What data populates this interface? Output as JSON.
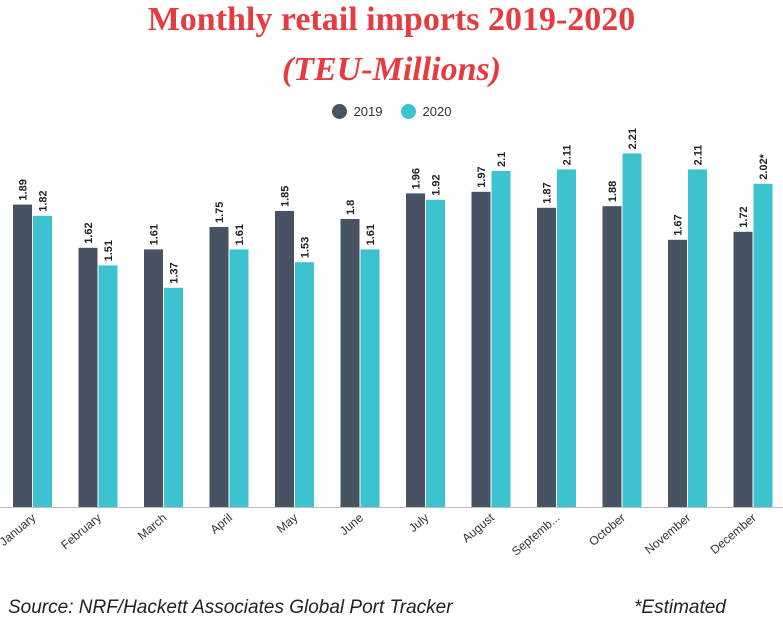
{
  "chart_data": {
    "type": "bar",
    "title": "Monthly retail imports 2019-2020",
    "subtitle": "(TEU-Millions)",
    "categories": [
      "January",
      "February",
      "March",
      "April",
      "May",
      "June",
      "July",
      "August",
      "Septemb...",
      "October",
      "November",
      "December"
    ],
    "series": [
      {
        "name": "2019",
        "color": "#475263",
        "values": [
          1.89,
          1.62,
          1.61,
          1.75,
          1.85,
          1.8,
          1.96,
          1.97,
          1.87,
          1.88,
          1.67,
          1.72
        ],
        "labels": [
          "1.89",
          "1.62",
          "1.61",
          "1.75",
          "1.85",
          "1.8",
          "1.96",
          "1.97",
          "1.87",
          "1.88",
          "1.67",
          "1.72"
        ]
      },
      {
        "name": "2020",
        "color": "#3cc3cf",
        "values": [
          1.82,
          1.51,
          1.37,
          1.61,
          1.53,
          1.61,
          1.92,
          2.1,
          2.11,
          2.21,
          2.11,
          2.02
        ],
        "labels": [
          "1.82",
          "1.51",
          "1.37",
          "1.61",
          "1.53",
          "1.61",
          "1.92",
          "2.1",
          "2.11",
          "2.21",
          "2.11",
          "2.02*"
        ]
      }
    ],
    "ylim": [
      0,
      2.5
    ],
    "grid": false,
    "legend_position": "top-center"
  },
  "footer": {
    "source": "Source: NRF/Hackett Associates Global Port Tracker",
    "note": "*Estimated"
  }
}
